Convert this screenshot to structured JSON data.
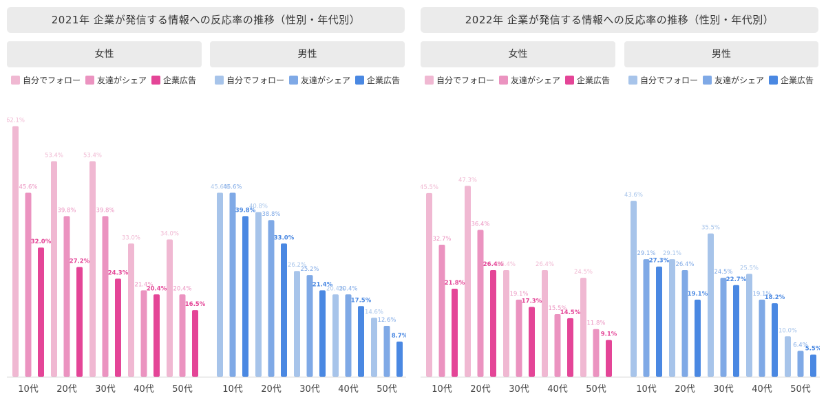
{
  "colors": {
    "female": [
      "#f0b8d2",
      "#eb93c0",
      "#e44597"
    ],
    "male": [
      "#a7c4ea",
      "#7fa9e6",
      "#4a88e2"
    ]
  },
  "panels": [
    {
      "title": "2021年 企業が発信する情報への反応率の推移（性別・年代別）",
      "female_label": "女性",
      "male_label": "男性",
      "legend": [
        "自分でフォロー",
        "友達がシェア",
        "企業広告"
      ],
      "chart_data": {
        "type": "bar",
        "categories": [
          "10代",
          "20代",
          "30代",
          "40代",
          "50代"
        ],
        "unit": "%",
        "ylim": [
          0,
          70
        ],
        "female_series": [
          {
            "name": "自分でフォロー",
            "values": [
              62.1,
              53.4,
              53.4,
              33.0,
              34.0
            ]
          },
          {
            "name": "友達がシェア",
            "values": [
              45.6,
              39.8,
              39.8,
              21.4,
              20.4
            ]
          },
          {
            "name": "企業広告",
            "values": [
              32.0,
              27.2,
              24.3,
              20.4,
              16.5
            ]
          }
        ],
        "male_series": [
          {
            "name": "自分でフォロー",
            "values": [
              45.6,
              40.8,
              26.2,
              20.4,
              14.6
            ]
          },
          {
            "name": "友達がシェア",
            "values": [
              45.6,
              38.8,
              25.2,
              20.4,
              12.6
            ]
          },
          {
            "name": "企業広告",
            "values": [
              39.8,
              33.0,
              21.4,
              17.5,
              8.7
            ]
          }
        ]
      }
    },
    {
      "title": "2022年 企業が発信する情報への反応率の推移（性別・年代別）",
      "female_label": "女性",
      "male_label": "男性",
      "legend": [
        "自分でフォロー",
        "友達がシェア",
        "企業広告"
      ],
      "chart_data": {
        "type": "bar",
        "categories": [
          "10代",
          "20代",
          "30代",
          "40代",
          "50代"
        ],
        "unit": "%",
        "ylim": [
          0,
          70
        ],
        "female_series": [
          {
            "name": "自分でフォロー",
            "values": [
              45.5,
              47.3,
              26.4,
              26.4,
              24.5
            ]
          },
          {
            "name": "友達がシェア",
            "values": [
              32.7,
              36.4,
              19.1,
              15.5,
              11.8
            ]
          },
          {
            "name": "企業広告",
            "values": [
              21.8,
              26.4,
              17.3,
              14.5,
              9.1
            ]
          }
        ],
        "male_series": [
          {
            "name": "自分でフォロー",
            "values": [
              43.6,
              29.1,
              35.5,
              25.5,
              10.0
            ]
          },
          {
            "name": "友達がシェア",
            "values": [
              29.1,
              26.4,
              24.5,
              19.1,
              6.4
            ]
          },
          {
            "name": "企業広告",
            "values": [
              27.3,
              19.1,
              22.7,
              18.2,
              5.5
            ]
          }
        ]
      }
    }
  ]
}
